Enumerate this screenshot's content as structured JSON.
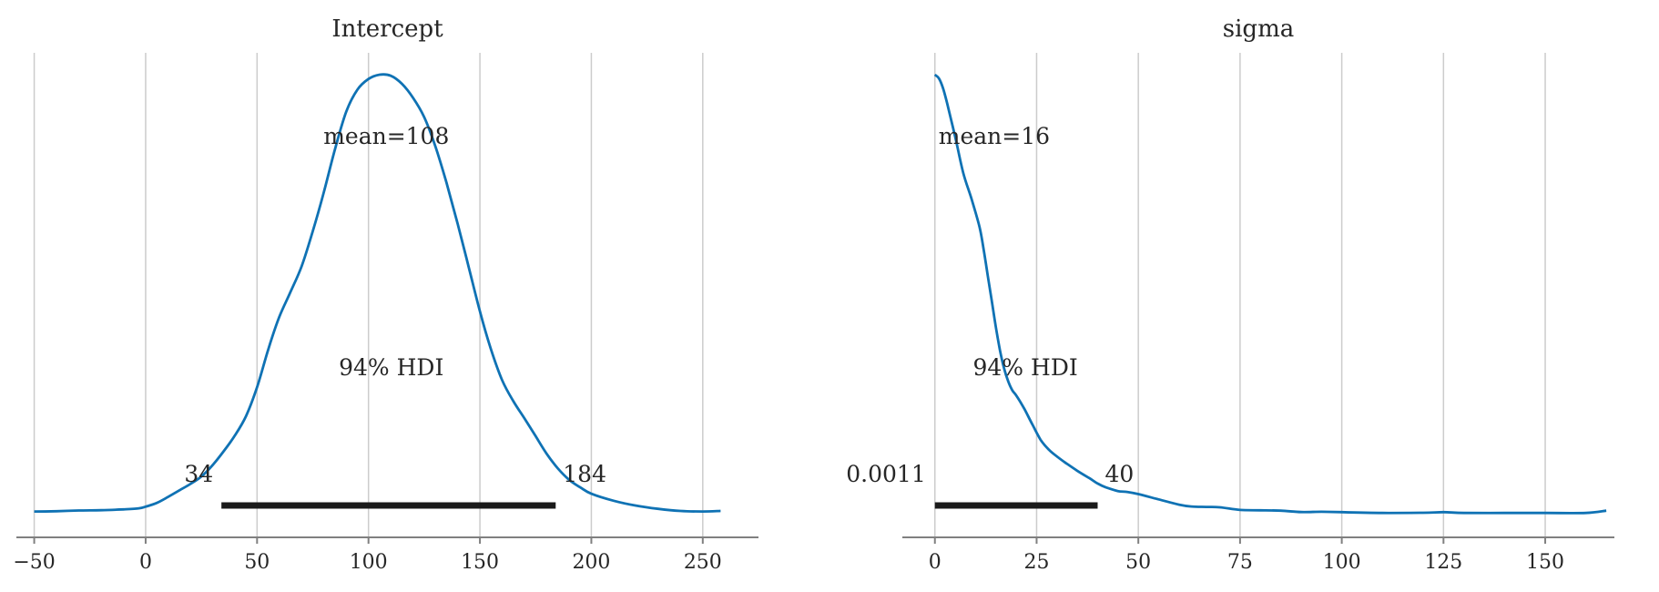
{
  "chart_data": [
    {
      "type": "line",
      "title": "Intercept",
      "xlim": [
        -58,
        275
      ],
      "x_ticks": [
        -50,
        0,
        50,
        100,
        150,
        200,
        250
      ],
      "x_tick_labels": [
        "−50",
        "0",
        "50",
        "100",
        "150",
        "200",
        "250"
      ],
      "grid": true,
      "density": {
        "x": [
          -50,
          -40,
          -30,
          -20,
          -10,
          -3,
          0,
          5,
          10,
          15,
          20,
          25,
          30,
          35,
          40,
          45,
          50,
          55,
          60,
          65,
          70,
          75,
          80,
          85,
          90,
          95,
          100,
          105,
          110,
          115,
          120,
          125,
          130,
          135,
          140,
          145,
          150,
          155,
          160,
          165,
          170,
          175,
          180,
          185,
          190,
          195,
          200,
          210,
          220,
          230,
          240,
          250,
          258
        ],
        "y": [
          0.0004,
          0.00045,
          0.0006,
          0.00065,
          0.0008,
          0.001,
          0.0013,
          0.002,
          0.0031,
          0.0043,
          0.0055,
          0.0069,
          0.009,
          0.0116,
          0.0145,
          0.0181,
          0.0235,
          0.0305,
          0.0366,
          0.0412,
          0.046,
          0.0525,
          0.0598,
          0.0678,
          0.0747,
          0.0788,
          0.0808,
          0.0816,
          0.0814,
          0.0799,
          0.0773,
          0.0737,
          0.0683,
          0.0615,
          0.0539,
          0.0458,
          0.0376,
          0.0305,
          0.0248,
          0.0209,
          0.0177,
          0.0144,
          0.0111,
          0.0084,
          0.0063,
          0.0049,
          0.0037,
          0.0024,
          0.0015,
          0.0009,
          0.0005,
          0.0004,
          0.0005
        ]
      },
      "mean": 108,
      "mean_label": "mean=108",
      "hdi": [
        34,
        184
      ],
      "hdi_label": "94% HDI",
      "hdi_low_label": "34",
      "hdi_high_label": "184"
    },
    {
      "type": "line",
      "title": "sigma",
      "xlim": [
        -8,
        167
      ],
      "x_ticks": [
        0,
        25,
        50,
        75,
        100,
        125,
        150
      ],
      "x_tick_labels": [
        "0",
        "25",
        "50",
        "75",
        "100",
        "125",
        "150"
      ],
      "grid": true,
      "density": {
        "x": [
          0,
          1,
          2,
          3,
          5,
          7,
          9,
          11,
          12,
          13,
          14,
          15,
          16,
          17,
          18,
          19,
          20,
          22,
          24,
          26,
          28,
          30,
          32,
          35,
          38,
          40,
          42,
          45,
          47,
          50,
          55,
          60,
          63,
          67,
          70,
          75,
          80,
          85,
          90,
          95,
          100,
          110,
          120,
          125,
          130,
          140,
          150,
          160,
          165
        ],
        "y": [
          0.0583,
          0.0578,
          0.0565,
          0.0545,
          0.05,
          0.0452,
          0.0418,
          0.038,
          0.035,
          0.0316,
          0.0282,
          0.0247,
          0.0217,
          0.0193,
          0.0176,
          0.0164,
          0.0157,
          0.0139,
          0.0118,
          0.0098,
          0.0085,
          0.0076,
          0.0068,
          0.0057,
          0.0047,
          0.004,
          0.0035,
          0.003,
          0.0029,
          0.0026,
          0.0019,
          0.0012,
          0.00095,
          0.0009,
          0.00085,
          0.0005,
          0.00045,
          0.0004,
          0.00022,
          0.00025,
          0.0002,
          0.0001,
          0.00012,
          0.0002,
          0.0001,
          0.0001,
          0.0001,
          0.0001,
          0.0004
        ]
      },
      "mean": 16,
      "mean_label": "mean=16",
      "hdi": [
        0.0011,
        40
      ],
      "hdi_label": "94% HDI",
      "hdi_low_label": "0.0011",
      "hdi_high_label": "40"
    }
  ]
}
